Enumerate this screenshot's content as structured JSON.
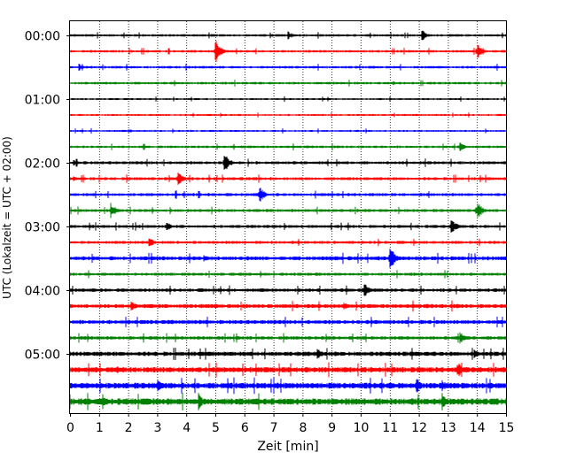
{
  "chart_data": {
    "type": "line",
    "title": "",
    "xlabel": "Zeit  [min]",
    "ylabel": "UTC (Lokalzeit = UTC + 02:00)",
    "xlim": [
      0,
      15
    ],
    "x_ticks": [
      0,
      1,
      2,
      3,
      4,
      5,
      6,
      7,
      8,
      9,
      10,
      11,
      12,
      13,
      14,
      15
    ],
    "x_tick_labels": [
      "0",
      "1",
      "2",
      "3",
      "4",
      "5",
      "6",
      "7",
      "8",
      "9",
      "10",
      "11",
      "12",
      "13",
      "14",
      "15"
    ],
    "y_tick_labels": [
      "00:00",
      "01:00",
      "02:00",
      "03:00",
      "04:00",
      "05:00"
    ],
    "grid": "vertical dotted at each minute",
    "row_colors": [
      "#000000",
      "#ff0000",
      "#0000ff",
      "#008000"
    ],
    "trace_count": 24,
    "trace_start_times": [
      "00:00",
      "00:15",
      "00:30",
      "00:45",
      "01:00",
      "01:15",
      "01:30",
      "01:45",
      "02:00",
      "02:15",
      "02:30",
      "02:45",
      "03:00",
      "03:15",
      "03:30",
      "03:45",
      "04:00",
      "04:15",
      "04:30",
      "04:45",
      "05:00",
      "05:15",
      "05:30",
      "05:45"
    ],
    "noise_level": [
      1,
      1,
      1,
      1,
      0.8,
      0.8,
      0.8,
      1,
      1.2,
      1.2,
      1.2,
      1.2,
      1.2,
      1.2,
      1.6,
      1.2,
      1.4,
      1.6,
      1.6,
      1.4,
      1.8,
      2.2,
      2.4,
      2.6
    ],
    "events": [
      {
        "trace": 0,
        "minute": 7.5,
        "amp": 5
      },
      {
        "trace": 0,
        "minute": 12.1,
        "amp": 7
      },
      {
        "trace": 1,
        "minute": 5.0,
        "amp": 14
      },
      {
        "trace": 1,
        "minute": 14.0,
        "amp": 11
      },
      {
        "trace": 2,
        "minute": 0.3,
        "amp": 4
      },
      {
        "trace": 3,
        "minute": 11.1,
        "amp": 3
      },
      {
        "trace": 6,
        "minute": 2.0,
        "amp": 3
      },
      {
        "trace": 7,
        "minute": 13.4,
        "amp": 6
      },
      {
        "trace": 8,
        "minute": 5.3,
        "amp": 13
      },
      {
        "trace": 8,
        "minute": 0.1,
        "amp": 4
      },
      {
        "trace": 9,
        "minute": 3.7,
        "amp": 11
      },
      {
        "trace": 9,
        "minute": 0.1,
        "amp": 5
      },
      {
        "trace": 10,
        "minute": 6.5,
        "amp": 11
      },
      {
        "trace": 11,
        "minute": 1.4,
        "amp": 9
      },
      {
        "trace": 11,
        "minute": 14.0,
        "amp": 12
      },
      {
        "trace": 12,
        "minute": 3.3,
        "amp": 7
      },
      {
        "trace": 12,
        "minute": 13.1,
        "amp": 12
      },
      {
        "trace": 13,
        "minute": 2.7,
        "amp": 7
      },
      {
        "trace": 14,
        "minute": 11.0,
        "amp": 16
      },
      {
        "trace": 14,
        "minute": 4.6,
        "amp": 4
      },
      {
        "trace": 16,
        "minute": 10.1,
        "amp": 10
      },
      {
        "trace": 17,
        "minute": 2.1,
        "amp": 8
      },
      {
        "trace": 17,
        "minute": 9.4,
        "amp": 6
      },
      {
        "trace": 19,
        "minute": 13.4,
        "amp": 9
      },
      {
        "trace": 20,
        "minute": 8.5,
        "amp": 7
      },
      {
        "trace": 20,
        "minute": 13.9,
        "amp": 6
      },
      {
        "trace": 21,
        "minute": 13.3,
        "amp": 12
      },
      {
        "trace": 21,
        "minute": 1.6,
        "amp": 6
      },
      {
        "trace": 22,
        "minute": 3.0,
        "amp": 10
      },
      {
        "trace": 22,
        "minute": 11.9,
        "amp": 11
      },
      {
        "trace": 22,
        "minute": 12.8,
        "amp": 7
      },
      {
        "trace": 23,
        "minute": 1.1,
        "amp": 11
      },
      {
        "trace": 23,
        "minute": 4.4,
        "amp": 12
      },
      {
        "trace": 23,
        "minute": 12.8,
        "amp": 12
      },
      {
        "trace": 23,
        "minute": 2.6,
        "amp": 6
      }
    ]
  }
}
